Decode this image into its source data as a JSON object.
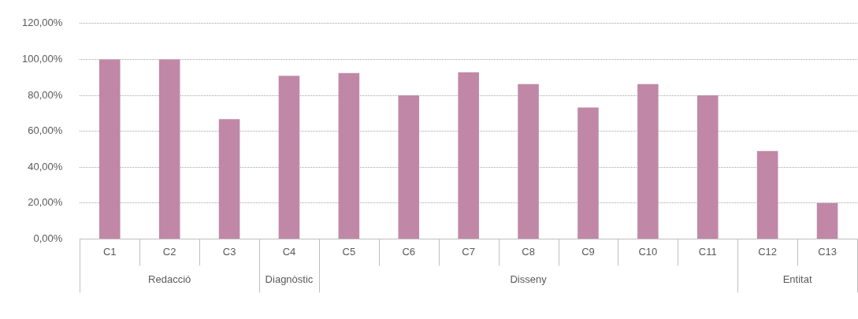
{
  "chart_data": {
    "type": "bar",
    "categories": [
      "C1",
      "C2",
      "C3",
      "C4",
      "C5",
      "C6",
      "C7",
      "C8",
      "C9",
      "C10",
      "C11",
      "C12",
      "C13"
    ],
    "values": [
      100,
      100,
      66.7,
      90.9,
      92.4,
      80,
      92.8,
      86.3,
      73.2,
      86.3,
      80,
      49,
      20
    ],
    "color": "#c088a6",
    "ylim": [
      0,
      120
    ],
    "yticks": [
      {
        "value": 0,
        "label": "0,00%"
      },
      {
        "value": 20,
        "label": "20,00%"
      },
      {
        "value": 40,
        "label": "40,00%"
      },
      {
        "value": 60,
        "label": "60,00%"
      },
      {
        "value": 80,
        "label": "80,00%"
      },
      {
        "value": 100,
        "label": "100,00%"
      },
      {
        "value": 120,
        "label": "120,00%"
      }
    ],
    "grid": "y",
    "legend": false,
    "annotations": [
      "Redacció",
      "Diagnòstic",
      "Disseny",
      "Entitat"
    ]
  }
}
